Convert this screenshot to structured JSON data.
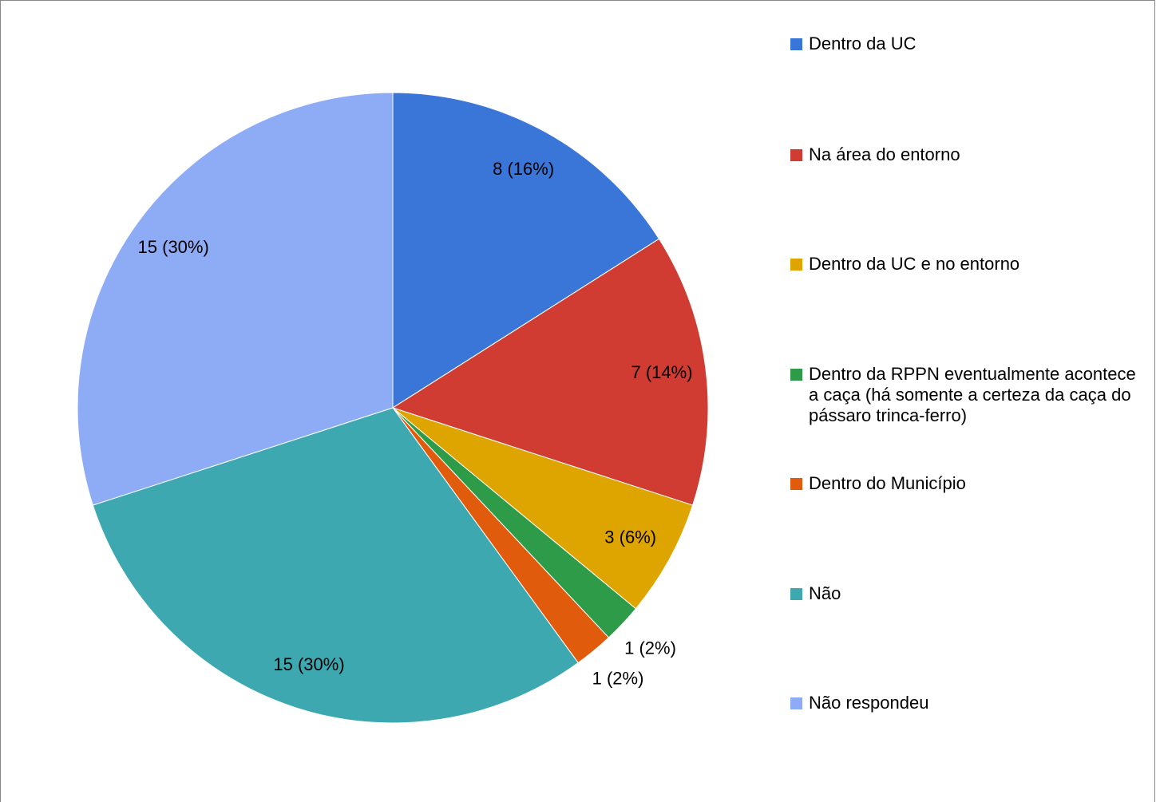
{
  "chart_data": {
    "type": "pie",
    "categories": [
      "Dentro da UC",
      "Na área do entorno",
      "Dentro da UC e no entorno",
      "Dentro da RPPN eventualmente acontece a caça (há somente a certeza da caça do pássaro trinca-ferro)",
      "Dentro do Município",
      "Não",
      "Não respondeu"
    ],
    "values": [
      8,
      7,
      3,
      1,
      1,
      15,
      15
    ],
    "value_labels": [
      "8 (16%)",
      "7 (14%)",
      "3 (6%)",
      "1 (2%)",
      "1 (2%)",
      "15 (30%)",
      "15 (30%)"
    ],
    "colors": [
      "#3a75d8",
      "#d03c31",
      "#dea500",
      "#2e9b48",
      "#e15b0d",
      "#3da8b0",
      "#8eabf5"
    ],
    "legend": "right"
  }
}
